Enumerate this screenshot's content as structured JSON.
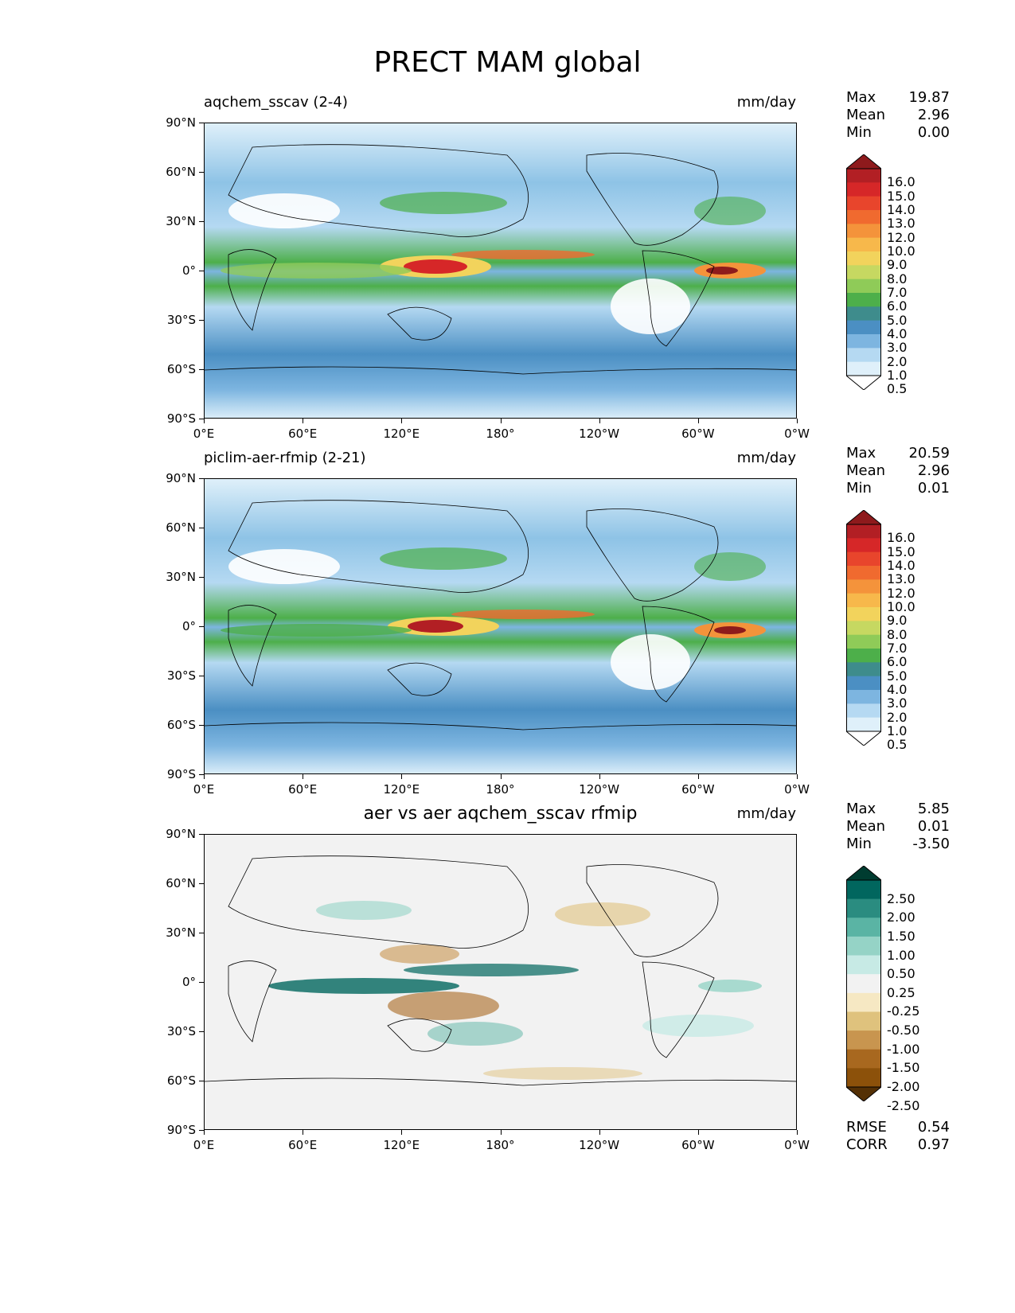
{
  "figure": {
    "title": "PRECT MAM global"
  },
  "axes": {
    "lat_labels": [
      "90°N",
      "60°N",
      "30°N",
      "0°",
      "30°S",
      "60°S",
      "90°S"
    ],
    "lon_labels": [
      "0°E",
      "60°E",
      "120°E",
      "180°",
      "120°W",
      "60°W",
      "0°W"
    ]
  },
  "panels": [
    {
      "title": "aqchem_sscav (2-4)",
      "units": "mm/day",
      "stats": [
        {
          "label": "Max",
          "value": "19.87"
        },
        {
          "label": "Mean",
          "value": "2.96"
        },
        {
          "label": "Min",
          "value": "0.00"
        }
      ],
      "colorbar": {
        "labels": [
          "16.0",
          "15.0",
          "14.0",
          "13.0",
          "12.0",
          "10.0",
          "9.0",
          "8.0",
          "7.0",
          "6.0",
          "5.0",
          "4.0",
          "3.0",
          "2.0",
          "1.0",
          "0.5"
        ],
        "colors": [
          "#8e1a1c",
          "#b21f24",
          "#d62728",
          "#e8452c",
          "#f06a2f",
          "#f4933b",
          "#f7b84b",
          "#f2d35c",
          "#c6d861",
          "#8fcb58",
          "#4daf4a",
          "#3e8c8c",
          "#4b8fc3",
          "#7db5e0",
          "#b5d9f2",
          "#dff0fa",
          "#ffffff"
        ]
      }
    },
    {
      "title": "piclim-aer-rfmip (2-21)",
      "units": "mm/day",
      "stats": [
        {
          "label": "Max",
          "value": "20.59"
        },
        {
          "label": "Mean",
          "value": "2.96"
        },
        {
          "label": "Min",
          "value": "0.01"
        }
      ],
      "colorbar": {
        "labels": [
          "16.0",
          "15.0",
          "14.0",
          "13.0",
          "12.0",
          "10.0",
          "9.0",
          "8.0",
          "7.0",
          "6.0",
          "5.0",
          "4.0",
          "3.0",
          "2.0",
          "1.0",
          "0.5"
        ],
        "colors": [
          "#8e1a1c",
          "#b21f24",
          "#d62728",
          "#e8452c",
          "#f06a2f",
          "#f4933b",
          "#f7b84b",
          "#f2d35c",
          "#c6d861",
          "#8fcb58",
          "#4daf4a",
          "#3e8c8c",
          "#4b8fc3",
          "#7db5e0",
          "#b5d9f2",
          "#dff0fa",
          "#ffffff"
        ]
      }
    },
    {
      "title": "aer vs aer aqchem_sscav rfmip",
      "units": "mm/day",
      "stats": [
        {
          "label": "Max",
          "value": "5.85"
        },
        {
          "label": "Mean",
          "value": "0.01"
        },
        {
          "label": "Min",
          "value": "-3.50"
        }
      ],
      "colorbar": {
        "labels": [
          "2.50",
          "2.00",
          "1.50",
          "1.00",
          "0.50",
          "0.25",
          "-0.25",
          "-0.50",
          "-1.00",
          "-1.50",
          "-2.00",
          "-2.50"
        ],
        "colors": [
          "#003c30",
          "#01665e",
          "#2a8c80",
          "#5ab4a4",
          "#95d3c6",
          "#c7eae5",
          "#f2f2f2",
          "#f6e8c3",
          "#dfc27d",
          "#c8954f",
          "#a8681f",
          "#8c510a",
          "#543005"
        ]
      },
      "footer": [
        {
          "label": "RMSE",
          "value": "0.54"
        },
        {
          "label": "CORR",
          "value": "0.97"
        }
      ]
    }
  ]
}
